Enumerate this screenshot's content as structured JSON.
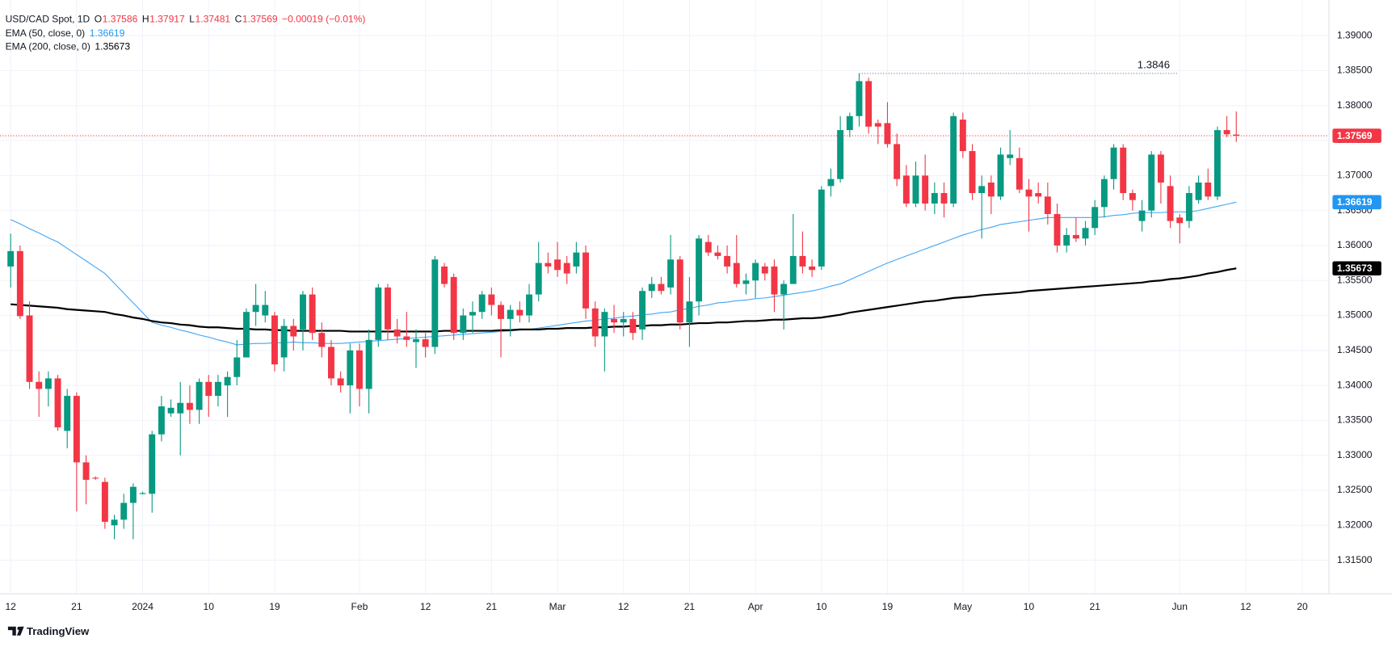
{
  "chart_data": {
    "type": "candlestick",
    "title": "USD/CAD Spot, 1D",
    "ohlc_labels": [
      "O",
      "H",
      "L",
      "C"
    ],
    "change": "−0.00019 (−0.01%)",
    "up_color": "#089981",
    "down_color": "#f23645",
    "candles": {
      "open": [
        1.357,
        1.3592,
        1.35,
        1.3405,
        1.3395,
        1.341,
        1.3335,
        1.3385,
        1.329,
        1.3268,
        1.3262,
        1.32,
        1.3208,
        1.3232,
        1.3245,
        1.3245,
        1.333,
        1.336,
        1.336,
        1.3375,
        1.3365,
        1.3405,
        1.3385,
        1.34,
        1.3412,
        1.344,
        1.3505,
        1.35,
        1.35,
        1.344,
        1.3485,
        1.348,
        1.353,
        1.3475,
        1.3455,
        1.341,
        1.34,
        1.345,
        1.3395,
        1.3465,
        1.354,
        1.348,
        1.347,
        1.3462,
        1.3466,
        1.3455,
        1.357,
        1.3555,
        1.3475,
        1.35,
        1.3505,
        1.353,
        1.3515,
        1.3495,
        1.3508,
        1.35,
        1.353,
        1.3575,
        1.358,
        1.3575,
        1.357,
        1.359,
        1.351,
        1.347,
        1.3495,
        1.349,
        1.3495,
        1.348,
        1.3535,
        1.3545,
        1.354,
        1.358,
        1.349,
        1.352,
        1.3605,
        1.359,
        1.3585,
        1.3575,
        1.3545,
        1.355,
        1.357,
        1.357,
        1.353,
        1.3545,
        1.3585,
        1.357,
        1.357,
        1.3685,
        1.3695,
        1.3765,
        1.3785,
        1.3835,
        1.3775,
        1.3775,
        1.3745,
        1.37,
        1.366,
        1.37,
        1.366,
        1.3675,
        1.366,
        1.378,
        1.3735,
        1.3675,
        1.369,
        1.367,
        1.3725,
        1.3725,
        1.368,
        1.3675,
        1.367,
        1.3645,
        1.36,
        1.3615,
        1.361,
        1.3625,
        1.3655,
        1.3695,
        1.374,
        1.3675,
        1.3635,
        1.365,
        1.373,
        1.3685,
        1.364,
        1.3635,
        1.3665,
        1.369,
        1.367,
        1.3765,
        1.37586
      ],
      "high": [
        1.3617,
        1.36,
        1.352,
        1.342,
        1.342,
        1.3415,
        1.3395,
        1.339,
        1.33,
        1.327,
        1.3268,
        1.3215,
        1.3245,
        1.326,
        1.3248,
        1.3335,
        1.3385,
        1.338,
        1.3405,
        1.34,
        1.341,
        1.3415,
        1.3415,
        1.342,
        1.3465,
        1.351,
        1.3545,
        1.3535,
        1.3505,
        1.3495,
        1.3495,
        1.3535,
        1.354,
        1.349,
        1.3465,
        1.342,
        1.346,
        1.346,
        1.348,
        1.3545,
        1.3545,
        1.3495,
        1.3505,
        1.348,
        1.3475,
        1.3585,
        1.3575,
        1.356,
        1.351,
        1.352,
        1.3535,
        1.354,
        1.352,
        1.3515,
        1.352,
        1.3545,
        1.3605,
        1.359,
        1.3605,
        1.3585,
        1.3605,
        1.36,
        1.352,
        1.351,
        1.3515,
        1.3505,
        1.3505,
        1.354,
        1.3555,
        1.3555,
        1.3615,
        1.3585,
        1.3555,
        1.3615,
        1.3615,
        1.36,
        1.36,
        1.3615,
        1.356,
        1.358,
        1.3575,
        1.358,
        1.355,
        1.3645,
        1.362,
        1.358,
        1.3685,
        1.371,
        1.3785,
        1.379,
        1.3846,
        1.384,
        1.378,
        1.3805,
        1.376,
        1.3715,
        1.372,
        1.373,
        1.369,
        1.369,
        1.379,
        1.379,
        1.3745,
        1.37,
        1.37,
        1.374,
        1.3765,
        1.374,
        1.3695,
        1.369,
        1.369,
        1.366,
        1.3625,
        1.364,
        1.3635,
        1.3665,
        1.37,
        1.3745,
        1.3745,
        1.368,
        1.3665,
        1.3735,
        1.3735,
        1.37,
        1.3645,
        1.3685,
        1.37,
        1.371,
        1.377,
        1.3785,
        1.37917
      ],
      "low": [
        1.354,
        1.3495,
        1.3395,
        1.3355,
        1.337,
        1.3335,
        1.331,
        1.322,
        1.323,
        1.3265,
        1.3195,
        1.318,
        1.3195,
        1.318,
        1.3244,
        1.3218,
        1.332,
        1.3355,
        1.33,
        1.3345,
        1.3345,
        1.3355,
        1.337,
        1.3355,
        1.34,
        1.344,
        1.3485,
        1.349,
        1.342,
        1.342,
        1.345,
        1.345,
        1.3465,
        1.344,
        1.34,
        1.339,
        1.336,
        1.337,
        1.336,
        1.3455,
        1.3465,
        1.346,
        1.3455,
        1.3425,
        1.344,
        1.3445,
        1.354,
        1.3465,
        1.3465,
        1.3475,
        1.3495,
        1.35,
        1.344,
        1.347,
        1.349,
        1.349,
        1.352,
        1.356,
        1.3555,
        1.3545,
        1.356,
        1.3495,
        1.3455,
        1.342,
        1.3475,
        1.347,
        1.3465,
        1.3465,
        1.3525,
        1.353,
        1.353,
        1.348,
        1.3455,
        1.35,
        1.3585,
        1.358,
        1.356,
        1.354,
        1.353,
        1.3525,
        1.355,
        1.3505,
        1.348,
        1.3545,
        1.356,
        1.3555,
        1.3565,
        1.367,
        1.369,
        1.3755,
        1.377,
        1.376,
        1.3745,
        1.374,
        1.3685,
        1.3655,
        1.3655,
        1.365,
        1.3645,
        1.364,
        1.3655,
        1.3725,
        1.3665,
        1.361,
        1.3645,
        1.3665,
        1.3715,
        1.3675,
        1.362,
        1.366,
        1.363,
        1.359,
        1.359,
        1.3605,
        1.36,
        1.3615,
        1.364,
        1.368,
        1.3665,
        1.365,
        1.362,
        1.364,
        1.366,
        1.3625,
        1.3603,
        1.3625,
        1.366,
        1.3665,
        1.3665,
        1.3755,
        1.37481
      ],
      "close": [
        1.3592,
        1.3499,
        1.3405,
        1.3395,
        1.341,
        1.334,
        1.3385,
        1.329,
        1.3265,
        1.3267,
        1.3205,
        1.3208,
        1.3232,
        1.3255,
        1.3246,
        1.333,
        1.337,
        1.3368,
        1.3375,
        1.3365,
        1.3405,
        1.3385,
        1.3405,
        1.3412,
        1.344,
        1.3505,
        1.3515,
        1.3515,
        1.343,
        1.3485,
        1.347,
        1.353,
        1.3475,
        1.3455,
        1.341,
        1.34,
        1.345,
        1.3395,
        1.3465,
        1.354,
        1.348,
        1.347,
        1.3465,
        1.3466,
        1.3455,
        1.358,
        1.3545,
        1.3475,
        1.35,
        1.3505,
        1.353,
        1.3515,
        1.3495,
        1.3508,
        1.35,
        1.353,
        1.3575,
        1.357,
        1.3565,
        1.356,
        1.359,
        1.351,
        1.347,
        1.3505,
        1.349,
        1.3495,
        1.3475,
        1.3535,
        1.3545,
        1.3535,
        1.358,
        1.349,
        1.352,
        1.361,
        1.359,
        1.3585,
        1.357,
        1.3545,
        1.355,
        1.3575,
        1.356,
        1.353,
        1.3545,
        1.3585,
        1.357,
        1.3565,
        1.368,
        1.3695,
        1.3765,
        1.3785,
        1.3835,
        1.377,
        1.377,
        1.3745,
        1.3695,
        1.366,
        1.37,
        1.366,
        1.3675,
        1.366,
        1.3785,
        1.3735,
        1.3675,
        1.3685,
        1.367,
        1.373,
        1.373,
        1.368,
        1.367,
        1.367,
        1.3645,
        1.36,
        1.3615,
        1.361,
        1.3625,
        1.3655,
        1.3695,
        1.374,
        1.3675,
        1.3665,
        1.365,
        1.373,
        1.369,
        1.3635,
        1.3632,
        1.3675,
        1.369,
        1.367,
        1.3765,
        1.3759,
        1.37569
      ]
    },
    "series": [
      {
        "name": "EMA (50, close, 0)",
        "color": "#42a5f5",
        "badge_color": "#2196f3",
        "values": [
          1.3637,
          1.3631,
          1.3624,
          1.3618,
          1.3611,
          1.3605,
          1.3596,
          1.3587,
          1.3578,
          1.3569,
          1.356,
          1.3546,
          1.3532,
          1.3518,
          1.3504,
          1.349,
          1.3486,
          1.3483,
          1.3479,
          1.3476,
          1.3472,
          1.3469,
          1.3465,
          1.3462,
          1.3458,
          1.3459,
          1.346,
          1.346,
          1.3461,
          1.3461,
          1.3462,
          1.3461,
          1.3461,
          1.346,
          1.346,
          1.346,
          1.3461,
          1.3462,
          1.3463,
          1.3464,
          1.3465,
          1.3466,
          1.3467,
          1.3468,
          1.3469,
          1.347,
          1.3471,
          1.3472,
          1.3473,
          1.3474,
          1.3475,
          1.3476,
          1.3477,
          1.3478,
          1.3479,
          1.348,
          1.3482,
          1.3484,
          1.3486,
          1.3488,
          1.349,
          1.3492,
          1.3493,
          1.3495,
          1.3496,
          1.3498,
          1.3499,
          1.3501,
          1.3502,
          1.3504,
          1.3505,
          1.3508,
          1.351,
          1.3513,
          1.3515,
          1.3518,
          1.3519,
          1.3521,
          1.3522,
          1.3524,
          1.3525,
          1.3527,
          1.3529,
          1.3531,
          1.3533,
          1.3535,
          1.3538,
          1.3542,
          1.3545,
          1.3551,
          1.3557,
          1.3563,
          1.3569,
          1.3575,
          1.358,
          1.3585,
          1.359,
          1.3595,
          1.36,
          1.3605,
          1.361,
          1.3615,
          1.3619,
          1.3623,
          1.3626,
          1.363,
          1.3632,
          1.3634,
          1.3636,
          1.3638,
          1.364,
          1.364,
          1.364,
          1.364,
          1.364,
          1.364,
          1.3641,
          1.3643,
          1.3644,
          1.3646,
          1.3647,
          1.3647,
          1.3647,
          1.3648,
          1.3648,
          1.3648,
          1.365,
          1.3653,
          1.3656,
          1.3659,
          1.36619
        ]
      },
      {
        "name": "EMA (200, close, 0)",
        "color": "#000000",
        "badge_color": "#000000",
        "values": [
          1.3516,
          1.3515,
          1.3514,
          1.3513,
          1.3512,
          1.3511,
          1.3509,
          1.3508,
          1.3507,
          1.3506,
          1.3505,
          1.3502,
          1.35,
          1.3497,
          1.3495,
          1.3492,
          1.349,
          1.3489,
          1.3487,
          1.3486,
          1.3484,
          1.3483,
          1.3483,
          1.3482,
          1.3481,
          1.3481,
          1.348,
          1.348,
          1.3479,
          1.3479,
          1.3478,
          1.3478,
          1.3478,
          1.3478,
          1.3478,
          1.3478,
          1.3477,
          1.3477,
          1.3477,
          1.3477,
          1.3477,
          1.3477,
          1.3477,
          1.3477,
          1.3477,
          1.3477,
          1.3478,
          1.3478,
          1.3478,
          1.3478,
          1.3478,
          1.3478,
          1.3479,
          1.3479,
          1.348,
          1.348,
          1.348,
          1.3481,
          1.3481,
          1.3482,
          1.3482,
          1.3482,
          1.3483,
          1.3483,
          1.3484,
          1.3484,
          1.3485,
          1.3485,
          1.3486,
          1.3486,
          1.3487,
          1.3487,
          1.3488,
          1.3489,
          1.3489,
          1.349,
          1.349,
          1.3491,
          1.3492,
          1.3492,
          1.3493,
          1.3494,
          1.3494,
          1.3495,
          1.3496,
          1.3496,
          1.3497,
          1.3499,
          1.3501,
          1.3504,
          1.3506,
          1.3508,
          1.351,
          1.3512,
          1.3514,
          1.3516,
          1.3518,
          1.352,
          1.3521,
          1.3523,
          1.3525,
          1.3526,
          1.3527,
          1.3529,
          1.353,
          1.3531,
          1.3532,
          1.3533,
          1.3535,
          1.3536,
          1.3537,
          1.3538,
          1.3539,
          1.354,
          1.3541,
          1.3542,
          1.3543,
          1.3544,
          1.3545,
          1.3546,
          1.3547,
          1.3549,
          1.355,
          1.3552,
          1.3553,
          1.3555,
          1.3557,
          1.356,
          1.3562,
          1.3565,
          1.35673
        ]
      }
    ],
    "ylim": [
      1.3102,
      1.3951
    ],
    "yticks": [
      {
        "value": 1.315,
        "label": "1.31500"
      },
      {
        "value": 1.32,
        "label": "1.32000"
      },
      {
        "value": 1.325,
        "label": "1.32500"
      },
      {
        "value": 1.33,
        "label": "1.33000"
      },
      {
        "value": 1.335,
        "label": "1.33500"
      },
      {
        "value": 1.34,
        "label": "1.34000"
      },
      {
        "value": 1.345,
        "label": "1.34500"
      },
      {
        "value": 1.35,
        "label": "1.35000"
      },
      {
        "value": 1.355,
        "label": "1.35500"
      },
      {
        "value": 1.36,
        "label": "1.36000"
      },
      {
        "value": 1.365,
        "label": "1.36500"
      },
      {
        "value": 1.37,
        "label": "1.37000"
      },
      {
        "value": 1.375,
        "label": "1.37500"
      },
      {
        "value": 1.38,
        "label": "1.38000"
      },
      {
        "value": 1.385,
        "label": "1.38500"
      },
      {
        "value": 1.39,
        "label": "1.39000"
      }
    ],
    "xticks": [
      {
        "value": 0,
        "label": "12"
      },
      {
        "value": 7,
        "label": "21"
      },
      {
        "value": 14,
        "label": "2024"
      },
      {
        "value": 21,
        "label": "10"
      },
      {
        "value": 28,
        "label": "19"
      },
      {
        "value": 37,
        "label": "Feb"
      },
      {
        "value": 44,
        "label": "12"
      },
      {
        "value": 51,
        "label": "21"
      },
      {
        "value": 58,
        "label": "Mar"
      },
      {
        "value": 65,
        "label": "12"
      },
      {
        "value": 72,
        "label": "21"
      },
      {
        "value": 79,
        "label": "Apr"
      },
      {
        "value": 86,
        "label": "10"
      },
      {
        "value": 93,
        "label": "19"
      },
      {
        "value": 101,
        "label": "May"
      },
      {
        "value": 108,
        "label": "10"
      },
      {
        "value": 115,
        "label": "21"
      },
      {
        "value": 124,
        "label": "Jun"
      },
      {
        "value": 131,
        "label": "12"
      },
      {
        "value": 137,
        "label": "20"
      }
    ],
    "grid": true
  },
  "footer": {
    "brand": "TradingView"
  }
}
